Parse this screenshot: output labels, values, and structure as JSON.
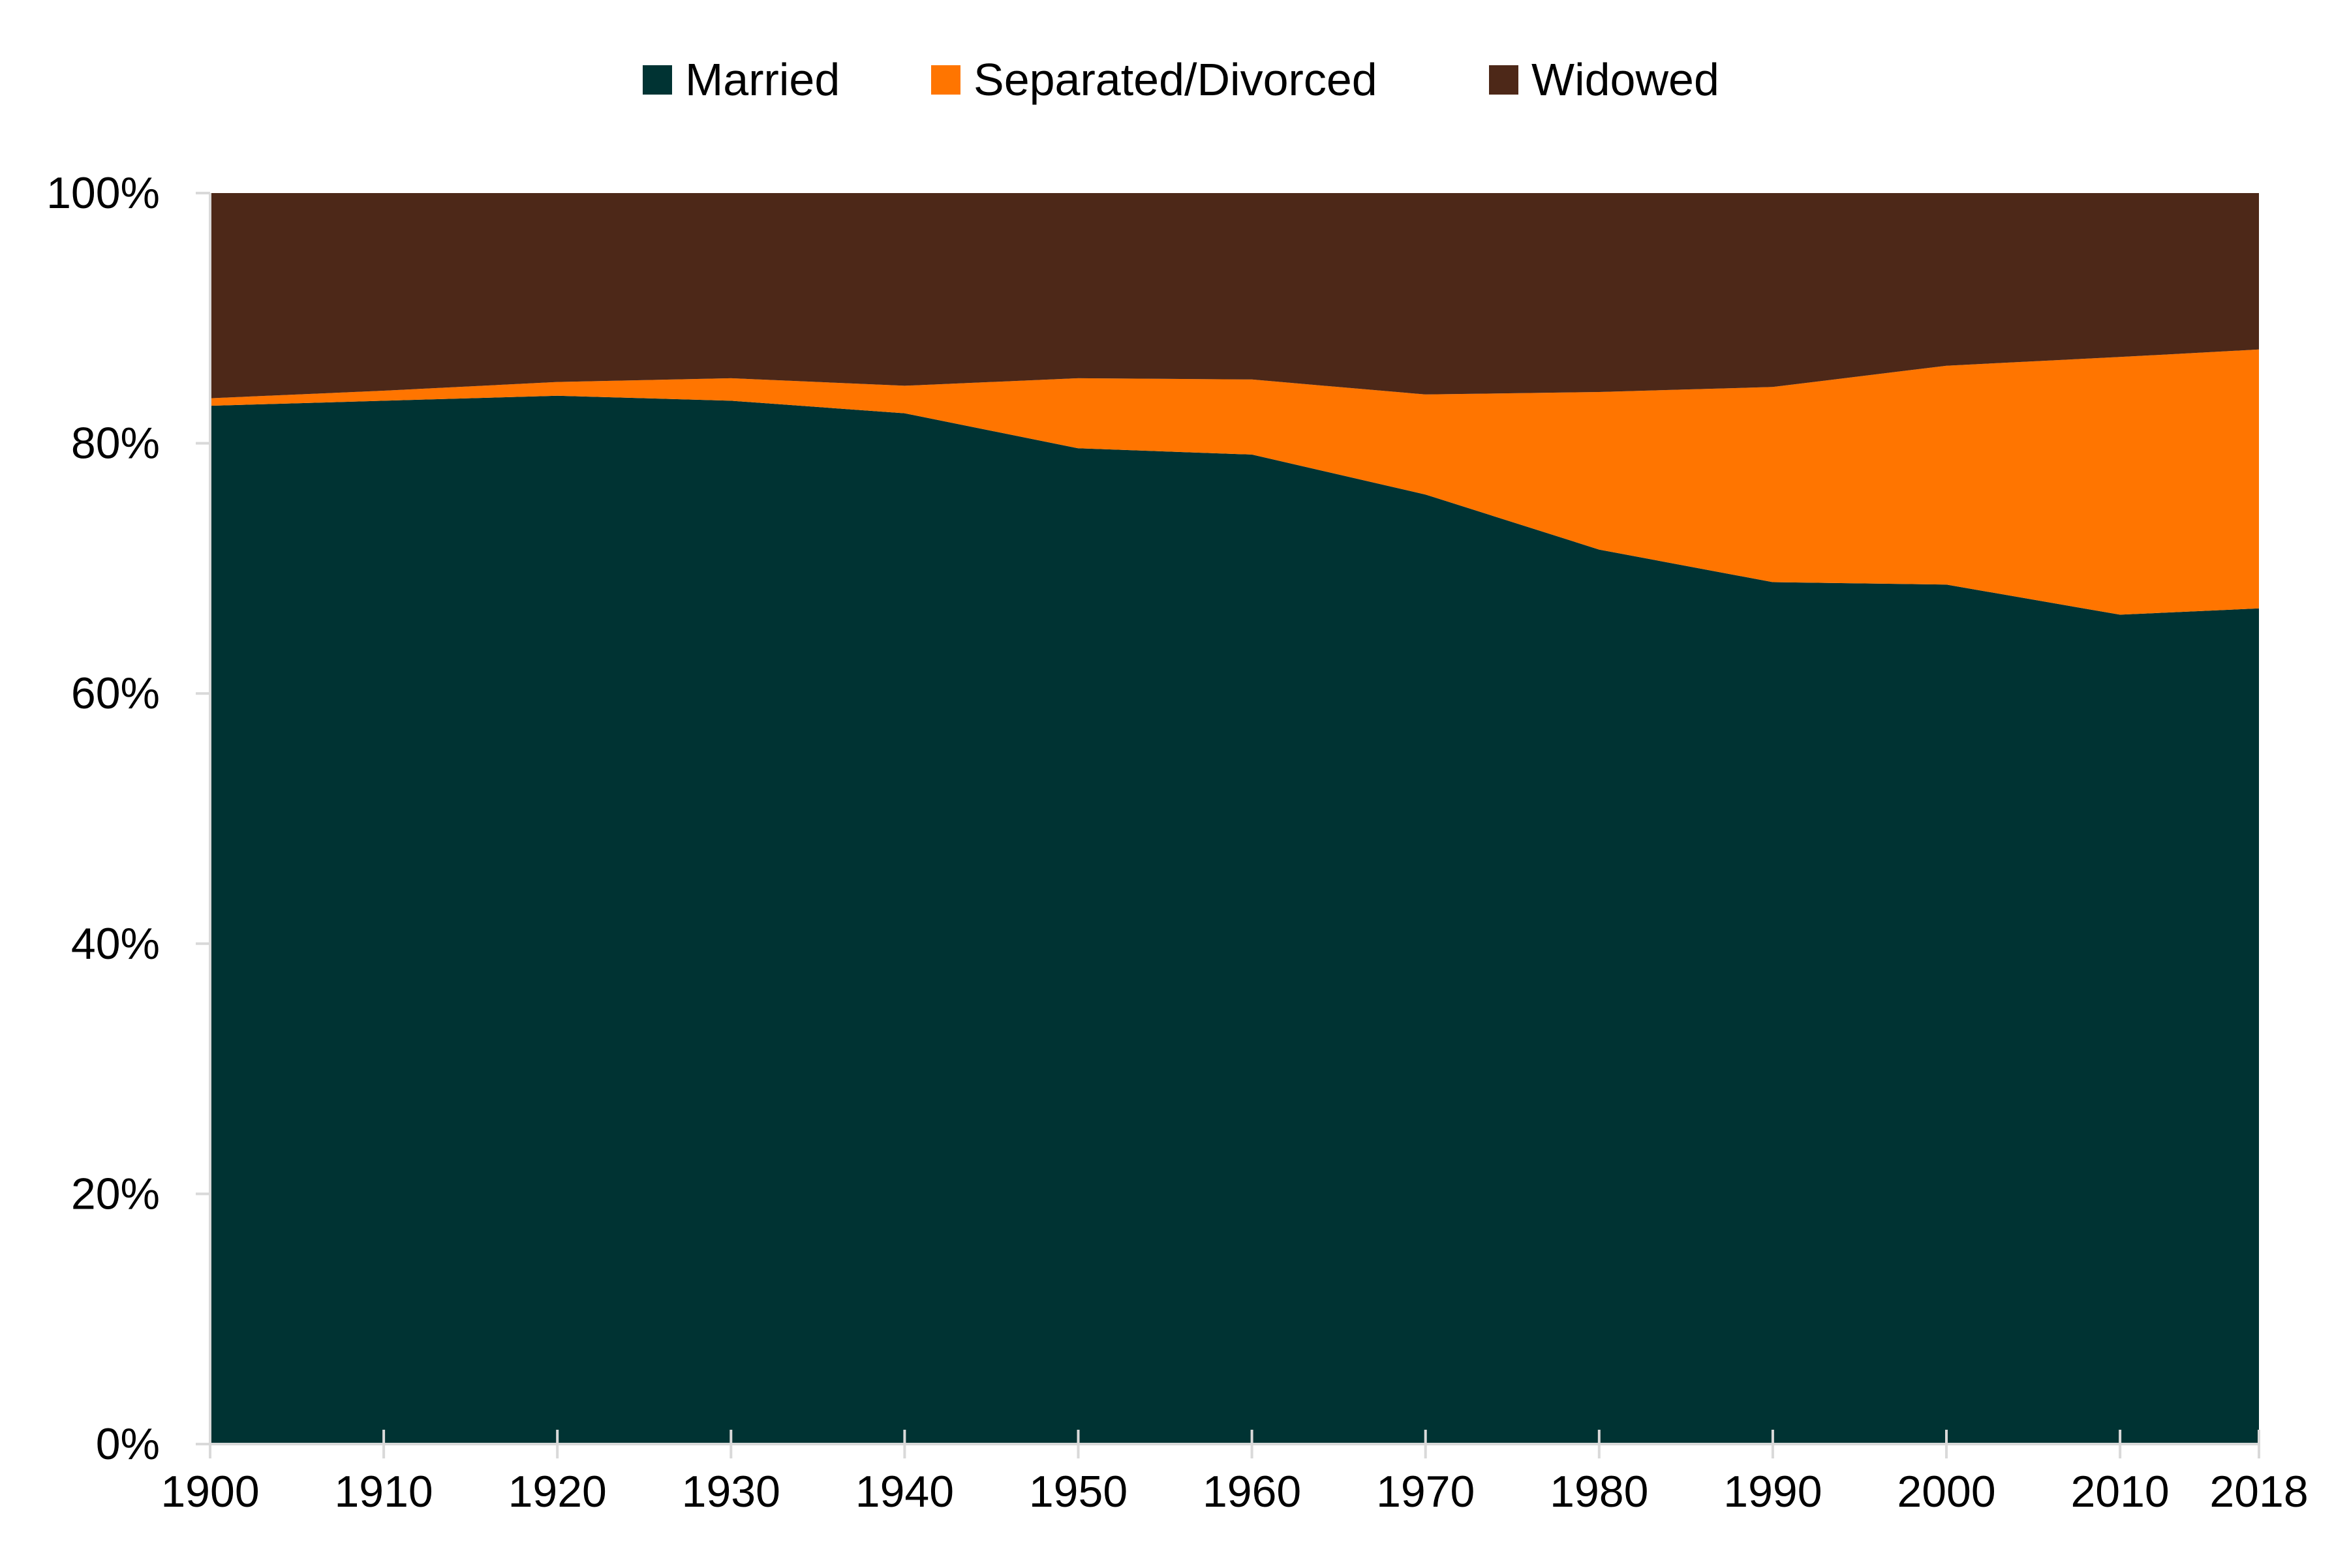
{
  "chart_data": {
    "type": "area",
    "stacked": true,
    "normalized": true,
    "categories": [
      "1900",
      "1910",
      "1920",
      "1930",
      "1940",
      "1950",
      "1960",
      "1970",
      "1980",
      "1990",
      "2000",
      "2010",
      "2018"
    ],
    "x": [
      1900,
      1910,
      1920,
      1930,
      1940,
      1950,
      1960,
      1970,
      1980,
      1990,
      2000,
      2010,
      2018
    ],
    "series": [
      {
        "name": "Married",
        "color": "#003333",
        "values": [
          83.0,
          83.4,
          83.8,
          83.4,
          82.4,
          79.6,
          79.1,
          75.9,
          71.5,
          68.9,
          68.7,
          66.3,
          66.8
        ]
      },
      {
        "name": "Separated/Divorced",
        "color": "#FF7500",
        "values": [
          0.6,
          0.8,
          1.1,
          1.8,
          2.2,
          5.6,
          6.0,
          8.0,
          12.6,
          15.6,
          17.5,
          20.6,
          20.7
        ]
      },
      {
        "name": "Widowed",
        "color": "#4D2818",
        "values": [
          16.4,
          15.8,
          15.1,
          14.8,
          15.4,
          14.8,
          14.9,
          16.1,
          15.9,
          15.5,
          13.8,
          13.1,
          12.5
        ]
      }
    ],
    "title": "",
    "xlabel": "",
    "ylabel": "",
    "ylim": [
      0,
      100
    ],
    "xlim": [
      1900,
      2018
    ],
    "y_ticks": [
      "0%",
      "20%",
      "40%",
      "60%",
      "80%",
      "100%"
    ],
    "y_tick_values": [
      0,
      20,
      40,
      60,
      80,
      100
    ],
    "x_ticks": [
      "1900",
      "1910",
      "1920",
      "1930",
      "1940",
      "1950",
      "1960",
      "1970",
      "1980",
      "1990",
      "2000",
      "2010",
      "2018"
    ],
    "legend_position": "top-center",
    "grid": false,
    "axis_color": "#D9D9D9"
  }
}
